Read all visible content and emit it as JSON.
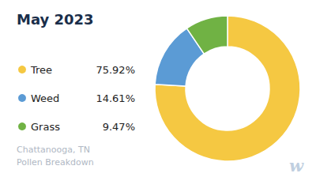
{
  "chart_data": {
    "type": "donut",
    "title": "May 2023",
    "subtitle": "Chattanooga, TN\nPollen Breakdown",
    "categories": [
      "Tree",
      "Weed",
      "Grass"
    ],
    "values": [
      75.92,
      14.61,
      9.47
    ],
    "value_labels": [
      "75.92%",
      "14.61%",
      "9.47%"
    ],
    "colors": [
      "#F5C842",
      "#5B9BD5",
      "#70B244"
    ],
    "legend": "left",
    "annotations": [
      "w"
    ]
  }
}
